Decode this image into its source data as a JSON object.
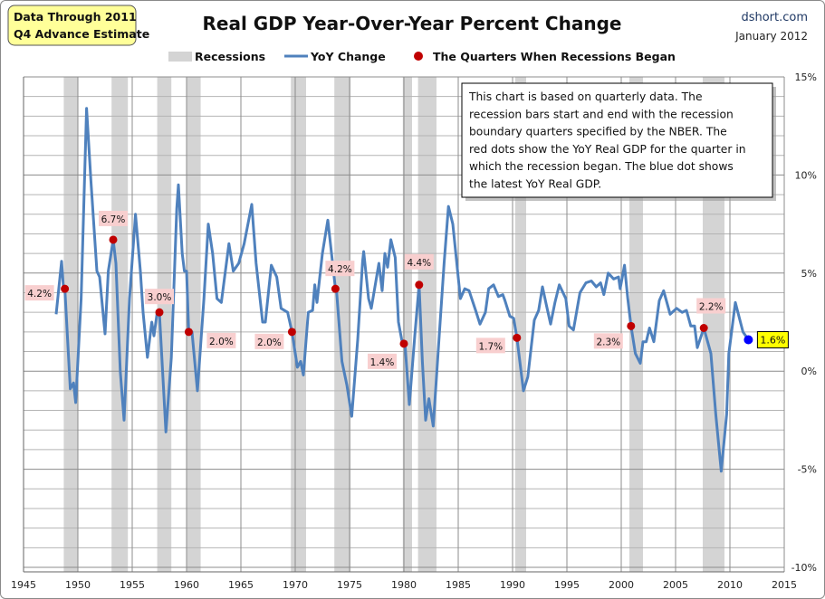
{
  "header": {
    "badge_line1": "Data Through 2011",
    "badge_line2": "Q4 Advance Estimate",
    "source": "dshort.com",
    "date": "January 2012"
  },
  "chart_data": {
    "type": "line",
    "title": "Real GDP Year-Over-Year Percent Change",
    "xlabel": "",
    "ylabel": "",
    "xlim": [
      1945,
      2015
    ],
    "ylim": [
      -10,
      15
    ],
    "x_ticks": [
      "1945",
      "1950",
      "1955",
      "1960",
      "1965",
      "1970",
      "1975",
      "1980",
      "1985",
      "1990",
      "1995",
      "2000",
      "2005",
      "2010",
      "2015"
    ],
    "y_ticks": [
      "15%",
      "10%",
      "5%",
      "0%",
      "-5%",
      "-10%"
    ],
    "y_tick_values": [
      15,
      10,
      5,
      0,
      -5,
      -10
    ],
    "grid": true,
    "legend_position": "top",
    "legend": [
      "Recessions",
      "YoY Change",
      "The Quarters When Recessions Began"
    ],
    "colors": {
      "line": "#4f81bd",
      "recession": "#d4d4d4",
      "recession_dot": "#c00000",
      "latest_dot": "#0000ff",
      "dot_label_bg": "#f8cfcf",
      "latest_label_bg": "#ffff00"
    },
    "recessions": [
      [
        1948.7,
        1950.0
      ],
      [
        1953.1,
        1954.6
      ],
      [
        1957.3,
        1958.6
      ],
      [
        1960.0,
        1961.3
      ],
      [
        1969.6,
        1971.0
      ],
      [
        1973.6,
        1975.1
      ],
      [
        1979.9,
        1980.75
      ],
      [
        1981.3,
        1983.0
      ],
      [
        1990.25,
        1991.25
      ],
      [
        2000.75,
        2002.0
      ],
      [
        2007.5,
        2009.5
      ]
    ],
    "series": [
      {
        "x": [
          1948.0,
          1948.5,
          1948.67,
          1948.8,
          1949.3,
          1949.6,
          1949.8,
          1950.3,
          1950.8,
          1951.2,
          1951.75,
          1952.0,
          1952.5,
          1952.8,
          1953.25,
          1953.5,
          1953.9,
          1954.25,
          1954.75,
          1955.3,
          1955.75,
          1956.0,
          1956.4,
          1956.8,
          1957.0,
          1957.3,
          1957.5,
          1958.1,
          1958.6,
          1959.1,
          1959.25,
          1959.6,
          1959.8,
          1960.0,
          1960.2,
          1960.5,
          1961.0,
          1961.6,
          1962.0,
          1962.4,
          1962.8,
          1963.2,
          1963.9,
          1964.3,
          1964.8,
          1965.3,
          1966.0,
          1966.4,
          1967.0,
          1967.25,
          1967.8,
          1968.3,
          1968.7,
          1969.3,
          1969.7,
          1970.2,
          1970.5,
          1970.75,
          1971.2,
          1971.6,
          1971.8,
          1972.0,
          1972.5,
          1973.0,
          1973.7,
          1973.8,
          1974.3,
          1974.75,
          1975.2,
          1975.75,
          1976.2,
          1976.3,
          1976.75,
          1977.0,
          1977.7,
          1978.0,
          1978.25,
          1978.5,
          1978.8,
          1979.2,
          1979.5,
          1979.8,
          1980.1,
          1980.5,
          1981.0,
          1981.4,
          1981.7,
          1982.0,
          1982.3,
          1982.7,
          1983.25,
          1983.7,
          1984.1,
          1984.5,
          1985.2,
          1985.6,
          1986.0,
          1986.6,
          1987.0,
          1987.5,
          1987.8,
          1988.25,
          1988.7,
          1989.1,
          1989.3,
          1989.75,
          1990.1,
          1990.4,
          1991.0,
          1991.4,
          1992.0,
          1992.4,
          1992.75,
          1993.1,
          1993.5,
          1993.9,
          1994.3,
          1994.9,
          1995.2,
          1995.6,
          1996.2,
          1996.75,
          1997.25,
          1997.7,
          1998.1,
          1998.4,
          1998.8,
          1999.3,
          1999.75,
          1999.9,
          2000.3,
          2000.6,
          2000.9,
          2001.3,
          2001.75,
          2002.0,
          2002.3,
          2002.6,
          2003.0,
          2003.5,
          2003.9,
          2004.5,
          2005.1,
          2005.6,
          2006.0,
          2006.4,
          2006.75,
          2007.0,
          2007.6,
          2008.25,
          2008.7,
          2009.2,
          2009.7,
          2009.9,
          2010.5,
          2011.2,
          2011.7
        ],
        "values": [
          2.9,
          5.6,
          4.3,
          4.2,
          -0.9,
          -0.6,
          -1.6,
          3.7,
          13.4,
          9.7,
          5.1,
          4.8,
          1.9,
          5.1,
          6.7,
          5.5,
          0.0,
          -2.5,
          3.7,
          8.0,
          5.1,
          3.0,
          0.7,
          2.5,
          1.8,
          3.0,
          3.0,
          -3.1,
          0.7,
          8.3,
          9.5,
          6.0,
          5.1,
          5.1,
          2.0,
          2.0,
          -1.0,
          3.7,
          7.5,
          6.0,
          3.7,
          3.5,
          6.5,
          5.1,
          5.5,
          6.5,
          8.5,
          5.5,
          2.5,
          2.5,
          5.4,
          4.8,
          3.2,
          3.0,
          2.0,
          0.2,
          0.5,
          -0.2,
          3.0,
          3.1,
          4.4,
          3.5,
          6.0,
          7.7,
          4.2,
          4.1,
          0.5,
          -0.7,
          -2.3,
          1.6,
          5.6,
          6.1,
          3.7,
          3.2,
          5.5,
          4.1,
          6.0,
          5.3,
          6.7,
          5.8,
          2.5,
          1.6,
          1.4,
          -1.7,
          1.8,
          4.4,
          0.5,
          -2.5,
          -1.4,
          -2.8,
          1.8,
          5.5,
          8.4,
          7.5,
          3.7,
          4.2,
          4.1,
          3.1,
          2.4,
          3.0,
          4.2,
          4.4,
          3.8,
          3.9,
          3.6,
          2.8,
          2.7,
          1.7,
          -1.0,
          -0.3,
          2.6,
          3.1,
          4.3,
          3.4,
          2.4,
          3.5,
          4.4,
          3.7,
          2.3,
          2.1,
          4.0,
          4.5,
          4.6,
          4.3,
          4.5,
          3.9,
          5.0,
          4.7,
          4.8,
          4.2,
          5.4,
          3.7,
          2.3,
          0.9,
          0.4,
          1.5,
          1.5,
          2.2,
          1.5,
          3.6,
          4.1,
          2.9,
          3.2,
          3.0,
          3.1,
          2.3,
          2.3,
          1.2,
          2.2,
          0.9,
          -2.2,
          -5.1,
          -2.2,
          0.9,
          3.5,
          2.0,
          1.6
        ]
      }
    ],
    "recession_start_points": [
      {
        "x": 1948.8,
        "value": 4.2,
        "label": "4.2%"
      },
      {
        "x": 1953.25,
        "value": 6.7,
        "label": "6.7%"
      },
      {
        "x": 1957.5,
        "value": 3.0,
        "label": "3.0%"
      },
      {
        "x": 1960.2,
        "value": 2.0,
        "label": "2.0%"
      },
      {
        "x": 1969.7,
        "value": 2.0,
        "label": "2.0%"
      },
      {
        "x": 1973.7,
        "value": 4.2,
        "label": "4.2%"
      },
      {
        "x": 1980.0,
        "value": 1.4,
        "label": "1.4%"
      },
      {
        "x": 1981.4,
        "value": 4.4,
        "label": "4.4%"
      },
      {
        "x": 1990.4,
        "value": 1.7,
        "label": "1.7%"
      },
      {
        "x": 2000.9,
        "value": 2.3,
        "label": "2.3%"
      },
      {
        "x": 2007.6,
        "value": 2.2,
        "label": "2.2%"
      }
    ],
    "latest_point": {
      "x": 2011.7,
      "value": 1.6,
      "label": "1.6%"
    },
    "annotation": [
      "This chart is based on quarterly data. The",
      "recession bars start and end with the recession",
      "boundary quarters specified by the  NBER. The",
      "red dots show the YoY Real GDP for the quarter in",
      "which the recession began. The blue dot shows",
      "the latest YoY Real GDP."
    ]
  }
}
